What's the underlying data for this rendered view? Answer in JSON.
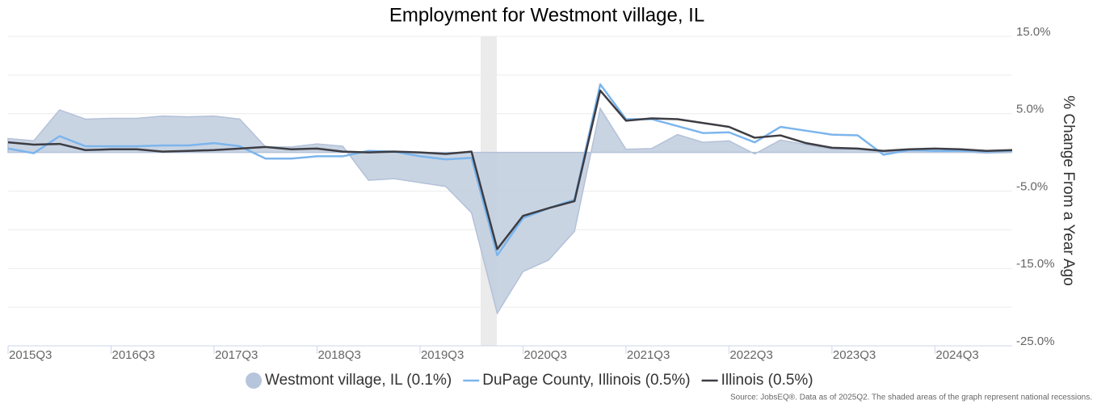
{
  "chart_data": {
    "type": "line",
    "title": "Employment for Westmont village, IL",
    "y_axis_label": "% Change From a Year Ago",
    "source": "Source: JobsEQ®. Data as of 2025Q2. The shaded areas of the graph represent national recessions.",
    "categories": [
      "2015Q3",
      null,
      null,
      null,
      "2016Q3",
      null,
      null,
      null,
      "2017Q3",
      null,
      null,
      null,
      "2018Q3",
      null,
      null,
      null,
      "2019Q3",
      null,
      null,
      null,
      "2020Q3",
      null,
      null,
      null,
      "2021Q3",
      null,
      null,
      null,
      "2022Q3",
      null,
      null,
      null,
      "2023Q3",
      null,
      null,
      null,
      "2024Q3",
      null,
      null,
      null
    ],
    "series": [
      {
        "name": "Westmont village, IL (0.1%)",
        "kind": "area",
        "color": "#c3cfe0",
        "values": [
          1.8,
          1.5,
          5.5,
          4.3,
          4.4,
          4.4,
          4.7,
          4.6,
          4.7,
          4.3,
          0.7,
          0.7,
          1.1,
          0.8,
          -3.6,
          -3.4,
          -3.9,
          -4.4,
          -7.8,
          -20.8,
          -15.4,
          -13.9,
          -10.2,
          5.7,
          0.4,
          0.5,
          2.3,
          1.3,
          1.5,
          -0.2,
          1.6,
          1.0,
          0.4,
          0.4,
          0.1,
          0.2,
          0.2,
          0.1,
          -0.1,
          0.0
        ]
      },
      {
        "name": "DuPage County, Illinois (0.5%)",
        "kind": "line",
        "color": "#7cb5ec",
        "values": [
          0.5,
          -0.1,
          2.1,
          0.8,
          0.8,
          0.8,
          0.9,
          0.9,
          1.2,
          0.8,
          -0.8,
          -0.8,
          -0.5,
          -0.5,
          0.2,
          0.1,
          -0.5,
          -0.9,
          -0.7,
          -13.3,
          -8.5,
          -7.2,
          -6.1,
          8.8,
          4.3,
          4.3,
          3.4,
          2.5,
          2.6,
          1.3,
          3.3,
          2.8,
          2.3,
          2.2,
          -0.3,
          0.3,
          0.2,
          0.2,
          0.1,
          0.2
        ]
      },
      {
        "name": "Illinois (0.5%)",
        "kind": "line",
        "color": "#3d3d44",
        "values": [
          1.3,
          1.0,
          1.1,
          0.3,
          0.4,
          0.4,
          0.1,
          0.2,
          0.3,
          0.5,
          0.7,
          0.4,
          0.5,
          0.1,
          0.0,
          0.1,
          0.0,
          -0.2,
          0.1,
          -12.5,
          -8.2,
          -7.2,
          -6.3,
          8.0,
          4.1,
          4.4,
          4.3,
          3.8,
          3.3,
          1.9,
          2.2,
          1.2,
          0.6,
          0.5,
          0.2,
          0.4,
          0.5,
          0.4,
          0.2,
          0.3
        ]
      }
    ],
    "ylim": [
      -25,
      15
    ],
    "yticks": [
      {
        "value": 15,
        "label": "15.0%"
      },
      {
        "value": 5,
        "label": "5.0%"
      },
      {
        "value": -5,
        "label": "-5.0%"
      },
      {
        "value": -15,
        "label": "-15.0%"
      },
      {
        "value": -25,
        "label": "-25.0%"
      }
    ],
    "ygrid": [
      15,
      10,
      5,
      0,
      -5,
      -10,
      -15,
      -20,
      -25
    ],
    "grid": true,
    "legend": "bottom"
  }
}
